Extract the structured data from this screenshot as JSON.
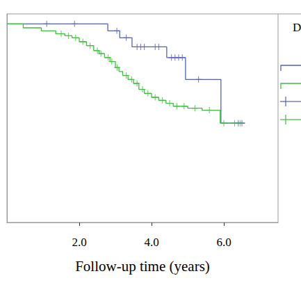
{
  "chart_data": {
    "type": "line",
    "x_label": "Follow-up time (years)",
    "xlim": [
      0,
      7.5
    ],
    "xticks": [
      {
        "value": 2,
        "label": "2.0"
      },
      {
        "value": 4,
        "label": "4.0"
      },
      {
        "value": 6,
        "label": "6.0"
      }
    ],
    "ylim": [
      0,
      1.05
    ],
    "tick_labels": "x",
    "grid": false,
    "annotations": [
      {
        "text": "D"
      }
    ],
    "series": [
      {
        "color": "#5462b4",
        "line_style": "step",
        "marker": "plus",
        "x": [
          0,
          2.79,
          3.12,
          3.46,
          4.42,
          4.94,
          5.92,
          6.58
        ],
        "values": [
          1.0,
          0.965,
          0.93,
          0.884,
          0.83,
          0.72,
          0.5,
          0.5
        ],
        "censored_x": [
          1.1,
          1.87,
          3.04,
          3.3,
          3.6,
          3.7,
          3.8,
          4.1,
          4.2,
          4.55,
          4.65,
          4.75,
          4.85,
          5.3,
          6.4,
          6.5
        ],
        "censored_y": [
          1.0,
          1.0,
          0.965,
          0.93,
          0.884,
          0.884,
          0.884,
          0.884,
          0.884,
          0.83,
          0.83,
          0.83,
          0.83,
          0.72,
          0.5,
          0.5
        ]
      },
      {
        "color": "#3dbf3d",
        "line_style": "step",
        "marker": "plus",
        "x": [
          0,
          0.45,
          0.95,
          1.35,
          1.6,
          1.8,
          2.0,
          2.2,
          2.4,
          2.55,
          2.7,
          2.85,
          3.0,
          3.1,
          3.2,
          3.35,
          3.5,
          3.65,
          3.8,
          4.0,
          4.2,
          4.4,
          4.6,
          5.0,
          5.4,
          5.9,
          6.5
        ],
        "values": [
          1.0,
          0.98,
          0.965,
          0.95,
          0.94,
          0.93,
          0.91,
          0.89,
          0.865,
          0.85,
          0.83,
          0.81,
          0.78,
          0.76,
          0.74,
          0.72,
          0.7,
          0.67,
          0.65,
          0.63,
          0.615,
          0.6,
          0.585,
          0.575,
          0.565,
          0.5,
          0.5
        ],
        "censored_x": [
          1.5,
          1.7,
          1.9,
          2.1,
          2.3,
          2.5,
          2.6,
          2.8,
          2.9,
          3.05,
          3.3,
          3.45,
          3.6,
          3.75,
          3.9,
          4.1,
          4.3,
          4.5,
          4.7,
          4.9,
          5.2,
          5.6,
          6.0,
          6.3,
          6.45
        ],
        "censored_y": [
          0.95,
          0.94,
          0.93,
          0.91,
          0.89,
          0.865,
          0.85,
          0.83,
          0.81,
          0.78,
          0.74,
          0.72,
          0.7,
          0.67,
          0.65,
          0.63,
          0.615,
          0.6,
          0.585,
          0.585,
          0.575,
          0.565,
          0.5,
          0.5,
          0.5
        ]
      }
    ]
  }
}
